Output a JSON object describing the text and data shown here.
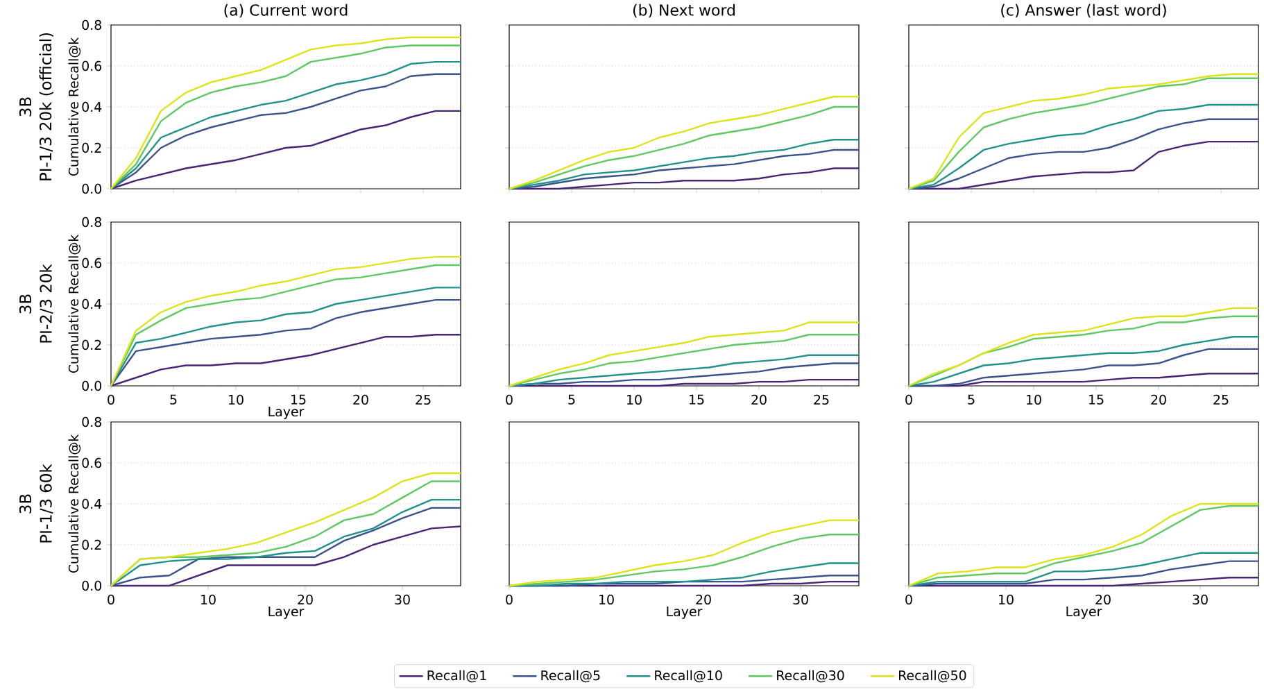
{
  "chart_data": [
    {
      "type": "line",
      "title": "(a) Current word",
      "ylabel": "Cumulative Recall@k",
      "annotations": [
        "3B",
        "PI-1/3 20k (official)"
      ],
      "x": [
        0,
        2,
        4,
        6,
        8,
        10,
        12,
        14,
        16,
        18,
        20,
        22,
        24,
        26,
        28
      ],
      "xlim": [
        0,
        28
      ],
      "ylim": [
        0,
        0.8
      ],
      "xticks": [
        0,
        5,
        10,
        15,
        20,
        25
      ],
      "yticks": [
        {
          "value": 0,
          "label": "0.0"
        },
        {
          "value": 0.2,
          "label": "0.2"
        },
        {
          "value": 0.4,
          "label": "0.4"
        },
        {
          "value": 0.6,
          "label": "0.6"
        },
        {
          "value": 0.8,
          "label": "0.8"
        }
      ],
      "tick_labels": "y",
      "grid": "y",
      "series": [
        {
          "color": "#482475",
          "values": [
            0,
            0.04,
            0.07,
            0.1,
            0.12,
            0.14,
            0.17,
            0.2,
            0.21,
            0.25,
            0.29,
            0.31,
            0.35,
            0.38,
            0.38
          ]
        },
        {
          "color": "#3b528b",
          "values": [
            0,
            0.08,
            0.2,
            0.26,
            0.3,
            0.33,
            0.36,
            0.37,
            0.4,
            0.44,
            0.48,
            0.5,
            0.55,
            0.56,
            0.56
          ]
        },
        {
          "color": "#21918c",
          "values": [
            0,
            0.1,
            0.25,
            0.3,
            0.35,
            0.38,
            0.41,
            0.43,
            0.47,
            0.51,
            0.53,
            0.56,
            0.61,
            0.62,
            0.62
          ]
        },
        {
          "color": "#5ec962",
          "values": [
            0,
            0.12,
            0.33,
            0.42,
            0.47,
            0.5,
            0.52,
            0.55,
            0.62,
            0.64,
            0.66,
            0.69,
            0.7,
            0.7,
            0.7
          ]
        },
        {
          "color": "#dde318",
          "values": [
            0,
            0.15,
            0.38,
            0.47,
            0.52,
            0.55,
            0.58,
            0.63,
            0.68,
            0.7,
            0.71,
            0.73,
            0.74,
            0.74,
            0.74
          ]
        }
      ]
    },
    {
      "type": "line",
      "title": "(b) Next word",
      "x": [
        0,
        2,
        4,
        6,
        8,
        10,
        12,
        14,
        16,
        18,
        20,
        22,
        24,
        26,
        28
      ],
      "xlim": [
        0,
        28
      ],
      "ylim": [
        0,
        0.8
      ],
      "xticks": [
        0,
        5,
        10,
        15,
        20,
        25
      ],
      "yticks": [
        0,
        0.2,
        0.4,
        0.6,
        0.8
      ],
      "tick_labels": false,
      "grid": "y",
      "series": [
        {
          "color": "#482475",
          "values": [
            0,
            0,
            0,
            0.01,
            0.02,
            0.03,
            0.03,
            0.04,
            0.04,
            0.04,
            0.05,
            0.07,
            0.08,
            0.1,
            0.1
          ]
        },
        {
          "color": "#3b528b",
          "values": [
            0,
            0.01,
            0.03,
            0.05,
            0.06,
            0.07,
            0.09,
            0.1,
            0.11,
            0.12,
            0.14,
            0.16,
            0.17,
            0.19,
            0.19
          ]
        },
        {
          "color": "#21918c",
          "values": [
            0,
            0.02,
            0.04,
            0.07,
            0.08,
            0.09,
            0.11,
            0.13,
            0.15,
            0.16,
            0.18,
            0.19,
            0.22,
            0.24,
            0.24
          ]
        },
        {
          "color": "#5ec962",
          "values": [
            0,
            0.03,
            0.07,
            0.11,
            0.14,
            0.16,
            0.19,
            0.22,
            0.26,
            0.28,
            0.3,
            0.33,
            0.36,
            0.4,
            0.4
          ]
        },
        {
          "color": "#dde318",
          "values": [
            0,
            0.04,
            0.09,
            0.14,
            0.18,
            0.2,
            0.25,
            0.28,
            0.32,
            0.34,
            0.36,
            0.39,
            0.42,
            0.45,
            0.45
          ]
        }
      ]
    },
    {
      "type": "line",
      "title": "(c) Answer (last word)",
      "x": [
        0,
        2,
        4,
        6,
        8,
        10,
        12,
        14,
        16,
        18,
        20,
        22,
        24,
        26,
        28
      ],
      "xlim": [
        0,
        28
      ],
      "ylim": [
        0,
        0.8
      ],
      "xticks": [
        0,
        5,
        10,
        15,
        20,
        25
      ],
      "yticks": [
        0,
        0.2,
        0.4,
        0.6,
        0.8
      ],
      "tick_labels": false,
      "grid": "y",
      "series": [
        {
          "color": "#482475",
          "values": [
            0,
            0,
            0,
            0.02,
            0.04,
            0.06,
            0.07,
            0.08,
            0.08,
            0.09,
            0.18,
            0.21,
            0.23,
            0.23,
            0.23
          ]
        },
        {
          "color": "#3b528b",
          "values": [
            0,
            0.01,
            0.05,
            0.1,
            0.15,
            0.17,
            0.18,
            0.18,
            0.2,
            0.24,
            0.29,
            0.32,
            0.34,
            0.34,
            0.34
          ]
        },
        {
          "color": "#21918c",
          "values": [
            0,
            0.02,
            0.1,
            0.19,
            0.22,
            0.24,
            0.26,
            0.27,
            0.31,
            0.34,
            0.38,
            0.39,
            0.41,
            0.41,
            0.41
          ]
        },
        {
          "color": "#5ec962",
          "values": [
            0,
            0.04,
            0.18,
            0.3,
            0.34,
            0.37,
            0.39,
            0.41,
            0.44,
            0.47,
            0.5,
            0.51,
            0.54,
            0.54,
            0.54
          ]
        },
        {
          "color": "#dde318",
          "values": [
            0,
            0.05,
            0.25,
            0.37,
            0.4,
            0.43,
            0.44,
            0.46,
            0.49,
            0.5,
            0.51,
            0.53,
            0.55,
            0.56,
            0.56
          ]
        }
      ]
    },
    {
      "type": "line",
      "xlabel": "Layer",
      "ylabel": "Cumulative Recall@k",
      "annotations": [
        "3B",
        "PI-2/3 20k"
      ],
      "x": [
        0,
        2,
        4,
        6,
        8,
        10,
        12,
        14,
        16,
        18,
        20,
        22,
        24,
        26,
        28
      ],
      "xlim": [
        0,
        28
      ],
      "ylim": [
        0,
        0.8
      ],
      "xticks": [
        0,
        5,
        10,
        15,
        20,
        25
      ],
      "yticks": [
        {
          "value": 0,
          "label": "0.0"
        },
        {
          "value": 0.2,
          "label": "0.2"
        },
        {
          "value": 0.4,
          "label": "0.4"
        },
        {
          "value": 0.6,
          "label": "0.6"
        },
        {
          "value": 0.8,
          "label": "0.8"
        }
      ],
      "grid": "y",
      "series": [
        {
          "color": "#482475",
          "values": [
            0,
            0.04,
            0.08,
            0.1,
            0.1,
            0.11,
            0.11,
            0.13,
            0.15,
            0.18,
            0.21,
            0.24,
            0.24,
            0.25,
            0.25
          ]
        },
        {
          "color": "#3b528b",
          "values": [
            0,
            0.17,
            0.19,
            0.21,
            0.23,
            0.24,
            0.25,
            0.27,
            0.28,
            0.33,
            0.36,
            0.38,
            0.4,
            0.42,
            0.42
          ]
        },
        {
          "color": "#21918c",
          "values": [
            0,
            0.21,
            0.23,
            0.26,
            0.29,
            0.31,
            0.32,
            0.35,
            0.36,
            0.4,
            0.42,
            0.44,
            0.46,
            0.48,
            0.48
          ]
        },
        {
          "color": "#5ec962",
          "values": [
            0,
            0.25,
            0.32,
            0.38,
            0.4,
            0.42,
            0.43,
            0.46,
            0.49,
            0.52,
            0.53,
            0.55,
            0.57,
            0.59,
            0.59
          ]
        },
        {
          "color": "#dde318",
          "values": [
            0,
            0.27,
            0.36,
            0.41,
            0.44,
            0.46,
            0.49,
            0.51,
            0.54,
            0.57,
            0.58,
            0.6,
            0.62,
            0.63,
            0.63
          ]
        }
      ]
    },
    {
      "type": "line",
      "x": [
        0,
        2,
        4,
        6,
        8,
        10,
        12,
        14,
        16,
        18,
        20,
        22,
        24,
        26,
        28
      ],
      "xlim": [
        0,
        28
      ],
      "ylim": [
        0,
        0.8
      ],
      "xticks": [
        0,
        5,
        10,
        15,
        20,
        25
      ],
      "yticks": [
        0,
        0.2,
        0.4,
        0.6,
        0.8
      ],
      "tick_labels": "x",
      "grid": "y",
      "series": [
        {
          "color": "#482475",
          "values": [
            0,
            0,
            0,
            0,
            0,
            0,
            0,
            0.01,
            0.01,
            0.01,
            0.02,
            0.02,
            0.03,
            0.03,
            0.03
          ]
        },
        {
          "color": "#3b528b",
          "values": [
            0,
            0.01,
            0.01,
            0.02,
            0.02,
            0.03,
            0.03,
            0.04,
            0.05,
            0.06,
            0.07,
            0.09,
            0.1,
            0.11,
            0.11
          ]
        },
        {
          "color": "#21918c",
          "values": [
            0,
            0.01,
            0.03,
            0.04,
            0.05,
            0.06,
            0.07,
            0.08,
            0.09,
            0.11,
            0.12,
            0.13,
            0.15,
            0.15,
            0.15
          ]
        },
        {
          "color": "#5ec962",
          "values": [
            0,
            0.03,
            0.06,
            0.08,
            0.11,
            0.12,
            0.14,
            0.16,
            0.18,
            0.2,
            0.21,
            0.22,
            0.25,
            0.25,
            0.25
          ]
        },
        {
          "color": "#dde318",
          "values": [
            0,
            0.04,
            0.08,
            0.11,
            0.15,
            0.17,
            0.19,
            0.21,
            0.24,
            0.25,
            0.26,
            0.27,
            0.31,
            0.31,
            0.31
          ]
        }
      ]
    },
    {
      "type": "line",
      "x": [
        0,
        2,
        4,
        6,
        8,
        10,
        12,
        14,
        16,
        18,
        20,
        22,
        24,
        26,
        28
      ],
      "xlim": [
        0,
        28
      ],
      "ylim": [
        0,
        0.8
      ],
      "xticks": [
        0,
        5,
        10,
        15,
        20,
        25
      ],
      "yticks": [
        0,
        0.2,
        0.4,
        0.6,
        0.8
      ],
      "tick_labels": "x",
      "grid": "y",
      "series": [
        {
          "color": "#482475",
          "values": [
            0,
            0,
            0,
            0.02,
            0.02,
            0.02,
            0.02,
            0.02,
            0.03,
            0.04,
            0.04,
            0.05,
            0.06,
            0.06,
            0.06
          ]
        },
        {
          "color": "#3b528b",
          "values": [
            0,
            0,
            0.01,
            0.04,
            0.05,
            0.06,
            0.07,
            0.08,
            0.1,
            0.1,
            0.11,
            0.15,
            0.18,
            0.18,
            0.18
          ]
        },
        {
          "color": "#21918c",
          "values": [
            0,
            0.02,
            0.06,
            0.1,
            0.11,
            0.13,
            0.14,
            0.15,
            0.16,
            0.16,
            0.17,
            0.2,
            0.22,
            0.24,
            0.24
          ]
        },
        {
          "color": "#5ec962",
          "values": [
            0,
            0.05,
            0.1,
            0.16,
            0.19,
            0.23,
            0.24,
            0.25,
            0.27,
            0.28,
            0.31,
            0.31,
            0.33,
            0.34,
            0.34
          ]
        },
        {
          "color": "#dde318",
          "values": [
            0,
            0.06,
            0.1,
            0.16,
            0.21,
            0.25,
            0.26,
            0.27,
            0.3,
            0.33,
            0.34,
            0.34,
            0.36,
            0.38,
            0.38
          ]
        }
      ]
    },
    {
      "type": "line",
      "xlabel": "Layer",
      "ylabel": "Cumulative Recall@k",
      "annotations": [
        "3B",
        "PI-1/3 60k"
      ],
      "x": [
        0,
        3,
        6,
        9,
        12,
        15,
        18,
        21,
        24,
        27,
        30,
        33,
        36
      ],
      "xlim": [
        0,
        36
      ],
      "ylim": [
        0,
        0.8
      ],
      "xticks": [
        0,
        10,
        20,
        30
      ],
      "yticks": [
        {
          "value": 0,
          "label": "0.0"
        },
        {
          "value": 0.2,
          "label": "0.2"
        },
        {
          "value": 0.4,
          "label": "0.4"
        },
        {
          "value": 0.6,
          "label": "0.6"
        },
        {
          "value": 0.8,
          "label": "0.8"
        }
      ],
      "grid": "y",
      "series": [
        {
          "color": "#482475",
          "values": [
            0,
            0,
            0,
            0.05,
            0.1,
            0.1,
            0.1,
            0.1,
            0.14,
            0.2,
            0.24,
            0.28,
            0.29
          ]
        },
        {
          "color": "#3b528b",
          "values": [
            0,
            0.04,
            0.05,
            0.13,
            0.14,
            0.14,
            0.14,
            0.14,
            0.22,
            0.27,
            0.33,
            0.38,
            0.38
          ]
        },
        {
          "color": "#21918c",
          "values": [
            0,
            0.1,
            0.12,
            0.13,
            0.13,
            0.14,
            0.16,
            0.17,
            0.24,
            0.28,
            0.36,
            0.42,
            0.42
          ]
        },
        {
          "color": "#5ec962",
          "values": [
            0,
            0.13,
            0.14,
            0.14,
            0.15,
            0.16,
            0.19,
            0.24,
            0.32,
            0.35,
            0.43,
            0.51,
            0.51
          ]
        },
        {
          "color": "#dde318",
          "values": [
            0,
            0.13,
            0.14,
            0.16,
            0.18,
            0.21,
            0.26,
            0.31,
            0.37,
            0.43,
            0.51,
            0.55,
            0.55
          ]
        }
      ]
    },
    {
      "type": "line",
      "xlabel": "Layer",
      "legend": "bottom",
      "x": [
        0,
        3,
        6,
        9,
        12,
        15,
        18,
        21,
        24,
        27,
        30,
        33,
        36
      ],
      "xlim": [
        0,
        36
      ],
      "ylim": [
        0,
        0.8
      ],
      "xticks": [
        0,
        10,
        20,
        30
      ],
      "yticks": [
        0,
        0.2,
        0.4,
        0.6,
        0.8
      ],
      "tick_labels": "x",
      "grid": "y",
      "series": [
        {
          "name": "Recall@1",
          "color": "#482475",
          "values": [
            0,
            0,
            0,
            0,
            0,
            0,
            0,
            0,
            0,
            0.01,
            0.01,
            0.02,
            0.02
          ]
        },
        {
          "name": "Recall@5",
          "color": "#3b528b",
          "values": [
            0,
            0,
            0,
            0.01,
            0.01,
            0.01,
            0.02,
            0.02,
            0.02,
            0.03,
            0.04,
            0.05,
            0.05
          ]
        },
        {
          "name": "Recall@10",
          "color": "#21918c",
          "values": [
            0,
            0,
            0.01,
            0.01,
            0.02,
            0.02,
            0.02,
            0.03,
            0.04,
            0.07,
            0.09,
            0.11,
            0.11
          ]
        },
        {
          "name": "Recall@30",
          "color": "#5ec962",
          "values": [
            0,
            0.01,
            0.02,
            0.03,
            0.05,
            0.07,
            0.08,
            0.1,
            0.14,
            0.19,
            0.23,
            0.25,
            0.25
          ]
        },
        {
          "name": "Recall@50",
          "color": "#dde318",
          "values": [
            0,
            0.02,
            0.03,
            0.04,
            0.07,
            0.1,
            0.12,
            0.15,
            0.21,
            0.26,
            0.29,
            0.32,
            0.32
          ]
        }
      ]
    },
    {
      "type": "line",
      "xlabel": "Layer",
      "x": [
        0,
        3,
        6,
        9,
        12,
        15,
        18,
        21,
        24,
        27,
        30,
        33,
        36
      ],
      "xlim": [
        0,
        36
      ],
      "ylim": [
        0,
        0.8
      ],
      "xticks": [
        0,
        10,
        20,
        30
      ],
      "yticks": [
        0,
        0.2,
        0.4,
        0.6,
        0.8
      ],
      "tick_labels": "x",
      "grid": "y",
      "series": [
        {
          "color": "#482475",
          "values": [
            0,
            0,
            0,
            0,
            0,
            0,
            0,
            0,
            0.01,
            0.02,
            0.03,
            0.04,
            0.04
          ]
        },
        {
          "color": "#3b528b",
          "values": [
            0,
            0.01,
            0.01,
            0.01,
            0.01,
            0.03,
            0.03,
            0.04,
            0.05,
            0.08,
            0.1,
            0.12,
            0.12
          ]
        },
        {
          "color": "#21918c",
          "values": [
            0,
            0.02,
            0.02,
            0.02,
            0.02,
            0.07,
            0.07,
            0.08,
            0.1,
            0.13,
            0.16,
            0.16,
            0.16
          ]
        },
        {
          "color": "#5ec962",
          "values": [
            0,
            0.04,
            0.05,
            0.06,
            0.06,
            0.11,
            0.14,
            0.17,
            0.21,
            0.29,
            0.37,
            0.39,
            0.39
          ]
        },
        {
          "color": "#dde318",
          "values": [
            0,
            0.06,
            0.07,
            0.09,
            0.09,
            0.13,
            0.15,
            0.19,
            0.25,
            0.34,
            0.4,
            0.4,
            0.4
          ]
        }
      ]
    }
  ]
}
